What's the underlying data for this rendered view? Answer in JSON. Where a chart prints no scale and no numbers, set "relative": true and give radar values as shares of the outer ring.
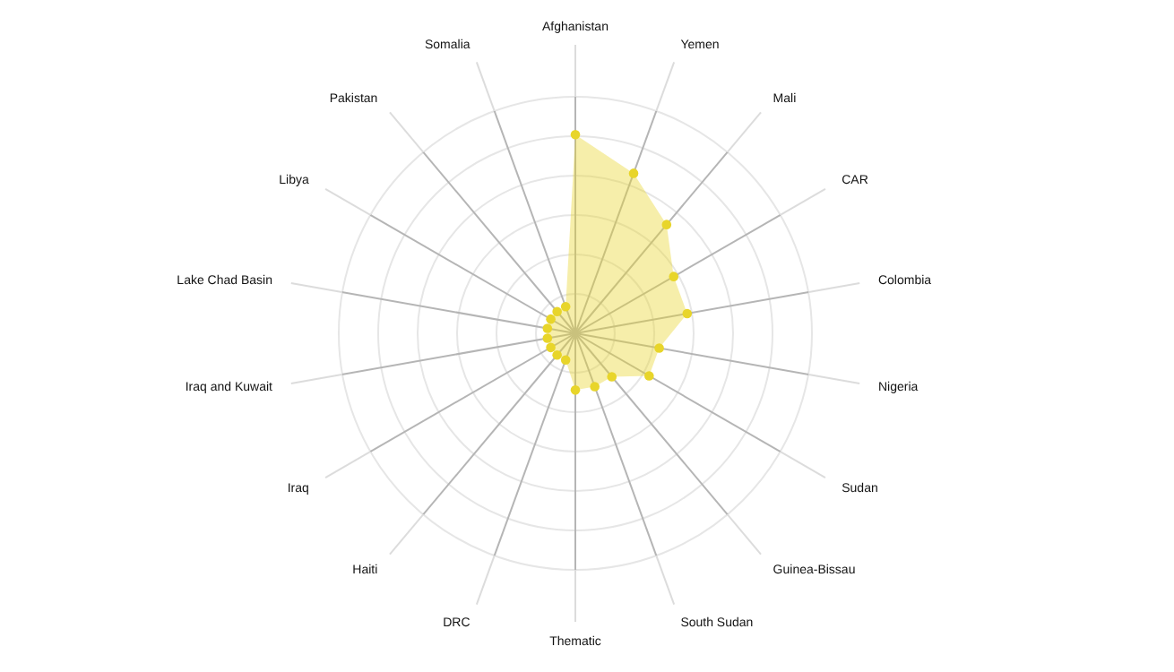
{
  "chart_data": {
    "type": "radar",
    "relative": true,
    "grid": true,
    "marker": "circle",
    "categories": [
      "Afghanistan",
      "Yemen",
      "Mali",
      "CAR",
      "Colombia",
      "Nigeria",
      "Sudan",
      "Guinea-Bissau",
      "South Sudan",
      "Thematic",
      "DRC",
      "Haiti",
      "Iraq",
      "Iraq and Kuwait",
      "Lake Chad Basin",
      "Libya",
      "Pakistan",
      "Somalia"
    ],
    "series": [
      {
        "color": "#e8d52a",
        "values": [
          0.84,
          0.72,
          0.6,
          0.48,
          0.48,
          0.36,
          0.36,
          0.24,
          0.24,
          0.24,
          0.12,
          0.12,
          0.12,
          0.12,
          0.12,
          0.12,
          0.12,
          0.12
        ]
      }
    ]
  }
}
